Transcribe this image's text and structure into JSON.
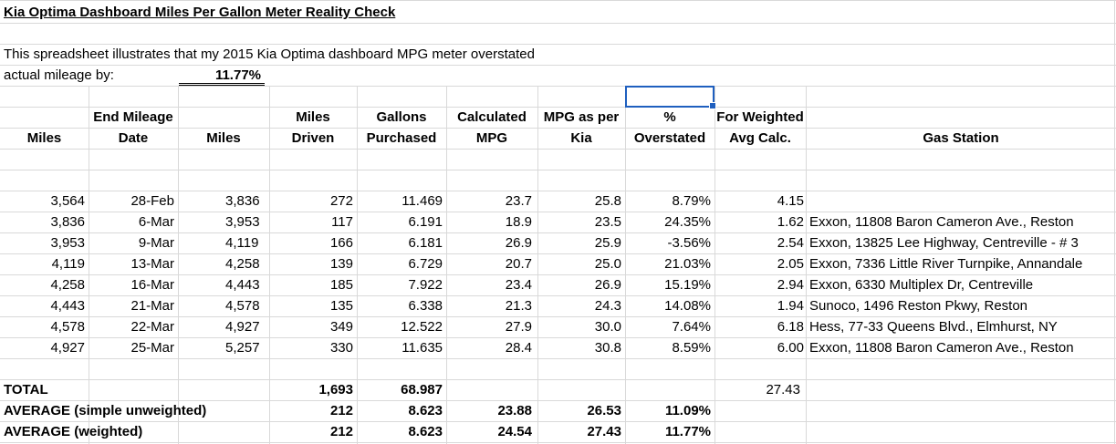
{
  "title": "Kia Optima Dashboard Miles Per Gallon Meter Reality Check",
  "intro": {
    "line1": "This spreadsheet illustrates that my 2015 Kia Optima dashboard MPG meter overstated",
    "line2": "actual mileage by:",
    "value": "11.77%"
  },
  "headers": {
    "row1": [
      "",
      "End Mileage",
      "",
      "Miles",
      "Gallons",
      "Calculated",
      "MPG as per",
      "%",
      "For Weighted",
      ""
    ],
    "row2": [
      "Miles",
      "Date",
      "Miles",
      "Driven",
      "Purchased",
      "MPG",
      "Kia",
      "Overstated",
      "Avg Calc.",
      "Gas Station"
    ]
  },
  "rows": [
    [
      "3,564",
      "28-Feb",
      "3,836",
      "272",
      "11.469",
      "23.7",
      "25.8",
      "8.79%",
      "4.15",
      ""
    ],
    [
      "3,836",
      "6-Mar",
      "3,953",
      "117",
      "6.191",
      "18.9",
      "23.5",
      "24.35%",
      "1.62",
      "Exxon, 11808 Baron Cameron Ave., Reston"
    ],
    [
      "3,953",
      "9-Mar",
      "4,119",
      "166",
      "6.181",
      "26.9",
      "25.9",
      "-3.56%",
      "2.54",
      "Exxon, 13825 Lee Highway, Centreville - # 3"
    ],
    [
      "4,119",
      "13-Mar",
      "4,258",
      "139",
      "6.729",
      "20.7",
      "25.0",
      "21.03%",
      "2.05",
      "Exxon, 7336 Little River Turnpike, Annandale"
    ],
    [
      "4,258",
      "16-Mar",
      "4,443",
      "185",
      "7.922",
      "23.4",
      "26.9",
      "15.19%",
      "2.94",
      "Exxon, 6330 Multiplex Dr, Centreville"
    ],
    [
      "4,443",
      "21-Mar",
      "4,578",
      "135",
      "6.338",
      "21.3",
      "24.3",
      "14.08%",
      "1.94",
      "Sunoco, 1496 Reston Pkwy, Reston"
    ],
    [
      "4,578",
      "22-Mar",
      "4,927",
      "349",
      "12.522",
      "27.9",
      "30.0",
      "7.64%",
      "6.18",
      "Hess, 77-33 Queens Blvd., Elmhurst, NY"
    ],
    [
      "4,927",
      "25-Mar",
      "5,257",
      "330",
      "11.635",
      "28.4",
      "30.8",
      "8.59%",
      "6.00",
      "Exxon, 11808 Baron Cameron Ave., Reston"
    ]
  ],
  "summary": {
    "total": {
      "label": "TOTAL",
      "miles_driven": "1,693",
      "gallons": "68.987",
      "weighted": "27.43"
    },
    "simple": {
      "label": "AVERAGE (simple unweighted)",
      "miles_driven": "212",
      "gallons": "8.623",
      "mpg": "23.88",
      "kia": "26.53",
      "pct": "11.09%"
    },
    "weighted": {
      "label": "AVERAGE (weighted)",
      "miles_driven": "212",
      "gallons": "8.623",
      "mpg": "24.54",
      "kia": "27.43",
      "pct": "11.77%"
    }
  },
  "colors": {
    "gridline": "#d9d9d9",
    "selection": "#1f5fbf"
  }
}
